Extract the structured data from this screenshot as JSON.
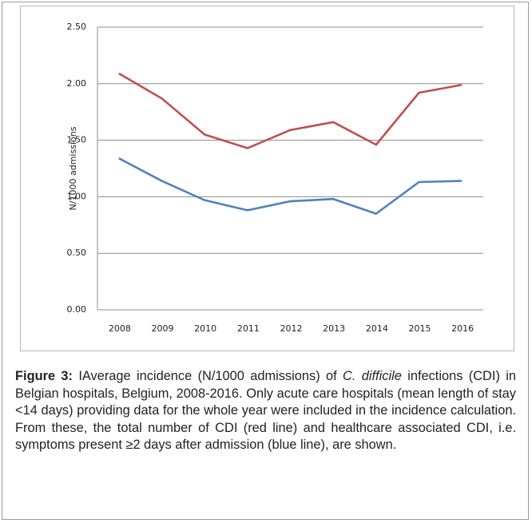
{
  "chart_data": {
    "type": "line",
    "y_label": "N/1000 admissions",
    "categories": [
      "2008",
      "2009",
      "2010",
      "2011",
      "2012",
      "2013",
      "2014",
      "2015",
      "2016"
    ],
    "series": [
      {
        "color": "#c0504d",
        "values": [
          2.09,
          1.87,
          1.55,
          1.43,
          1.59,
          1.66,
          1.46,
          1.92,
          1.99
        ]
      },
      {
        "color": "#4f81bd",
        "values": [
          1.34,
          1.14,
          0.97,
          0.88,
          0.96,
          0.98,
          0.85,
          1.13,
          1.14
        ]
      }
    ],
    "ylim": [
      0,
      2.5
    ],
    "yticks": [
      {
        "value": 0,
        "label": "0.00"
      },
      {
        "value": 0.5,
        "label": "0.50"
      },
      {
        "value": 1,
        "label": "1.00"
      },
      {
        "value": 1.5,
        "label": "1.50"
      },
      {
        "value": 2,
        "label": "2.00"
      },
      {
        "value": 2.5,
        "label": "2.50"
      }
    ],
    "grid": true
  },
  "caption": {
    "label": "Figure 3:",
    "text_1": "IAverage incidence (N/1000 admissions) of",
    "species": "C. difficile",
    "text_2": "infections (CDI) in Belgian hospitals, Belgium, 2008-2016. Only acute care hospitals (mean length of stay <14 days) providing data for the whole year were included in the incidence calculation. From these, the total number of CDI (red line) and healthcare associated CDI, i.e. symptoms present ≥2 days after admission (blue line), are shown."
  }
}
